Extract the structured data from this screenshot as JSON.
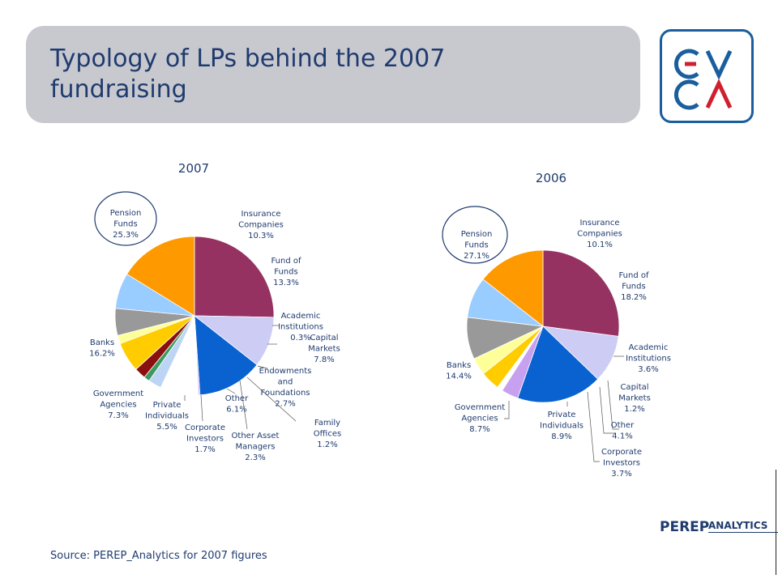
{
  "header": {
    "title_line1": "Typology of LPs behind the 2007",
    "title_line2": "fundraising"
  },
  "logo": {
    "icon": "evca-logo",
    "alt": "EVCA"
  },
  "branding": {
    "main": "PEREP",
    "sub": "ANALYTICS"
  },
  "footer": {
    "source": "Source: PEREP_Analytics  for 2007 figures"
  },
  "colors": {
    "title_box": "#c8c8cf",
    "text": "#1f3b6e",
    "Pension Funds": "#953261",
    "Insurance Companies": "#ccccf5",
    "Fund of Funds": "#0a62d0",
    "Academic Institutions": "#c8a0f0",
    "Capital Markets": "#ffffff",
    "Endowments and Foundations": "#bdd5f5",
    "Family Offices": "#3c9a60",
    "Other Asset Managers": "#8a1010",
    "Other": "#ffcc00",
    "Corporate Investors": "#ffff99",
    "Private Individuals": "#999999",
    "Government Agencies": "#99ccff",
    "Banks": "#ff9900"
  },
  "chart_data": [
    {
      "type": "pie",
      "title": "2007",
      "categories": [
        "Pension Funds",
        "Insurance Companies",
        "Fund of Funds",
        "Academic Institutions",
        "Capital Markets",
        "Endowments and Foundations",
        "Family Offices",
        "Other Asset Managers",
        "Other",
        "Corporate Investors",
        "Private Individuals",
        "Government Agencies",
        "Banks"
      ],
      "values": [
        25.3,
        10.3,
        13.3,
        0.3,
        7.8,
        2.7,
        1.2,
        2.3,
        6.1,
        1.7,
        5.5,
        7.3,
        16.2
      ],
      "labels": [
        {
          "lines": [
            "Pension",
            "Funds",
            "25.3%"
          ]
        },
        {
          "lines": [
            "Insurance",
            "Companies",
            "10.3%"
          ]
        },
        {
          "lines": [
            "Fund of",
            "Funds",
            "13.3%"
          ]
        },
        {
          "lines": [
            "Academic",
            "Institutions",
            "0.3%"
          ]
        },
        {
          "lines": [
            "Capital",
            "Markets",
            "7.8%"
          ]
        },
        {
          "lines": [
            "Endowments",
            "and",
            "Foundations",
            "2.7%"
          ]
        },
        {
          "lines": [
            "Family",
            "Offices",
            "1.2%"
          ]
        },
        {
          "lines": [
            "Other Asset",
            "Managers",
            "2.3%"
          ]
        },
        {
          "lines": [
            "Other",
            "6.1%"
          ]
        },
        {
          "lines": [
            "Corporate",
            "Investors",
            "1.7%"
          ]
        },
        {
          "lines": [
            "Private",
            "Individuals",
            "5.5%"
          ]
        },
        {
          "lines": [
            "Government",
            "Agencies",
            "7.3%"
          ]
        },
        {
          "lines": [
            "Banks",
            "16.2%"
          ]
        }
      ]
    },
    {
      "type": "pie",
      "title": "2006",
      "categories": [
        "Pension Funds",
        "Insurance Companies",
        "Fund of Funds",
        "Academic Institutions",
        "Capital Markets",
        "Other",
        "Corporate Investors",
        "Private Individuals",
        "Government Agencies",
        "Banks"
      ],
      "values": [
        27.1,
        10.1,
        18.2,
        3.6,
        1.2,
        4.1,
        3.7,
        8.9,
        8.7,
        14.4
      ],
      "labels": [
        {
          "lines": [
            "Pension",
            "Funds",
            "27.1%"
          ]
        },
        {
          "lines": [
            "Insurance",
            "Companies",
            "10.1%"
          ]
        },
        {
          "lines": [
            "Fund of",
            "Funds",
            "18.2%"
          ]
        },
        {
          "lines": [
            "Academic",
            "Institutions",
            "3.6%"
          ]
        },
        {
          "lines": [
            "Capital",
            "Markets",
            "1.2%"
          ]
        },
        {
          "lines": [
            "Other",
            "4.1%"
          ]
        },
        {
          "lines": [
            "Corporate",
            "Investors",
            "3.7%"
          ]
        },
        {
          "lines": [
            "Private",
            "Individuals",
            "8.9%"
          ]
        },
        {
          "lines": [
            "Government",
            "Agencies",
            "8.7%"
          ]
        },
        {
          "lines": [
            "Banks",
            "14.4%"
          ]
        }
      ]
    }
  ]
}
